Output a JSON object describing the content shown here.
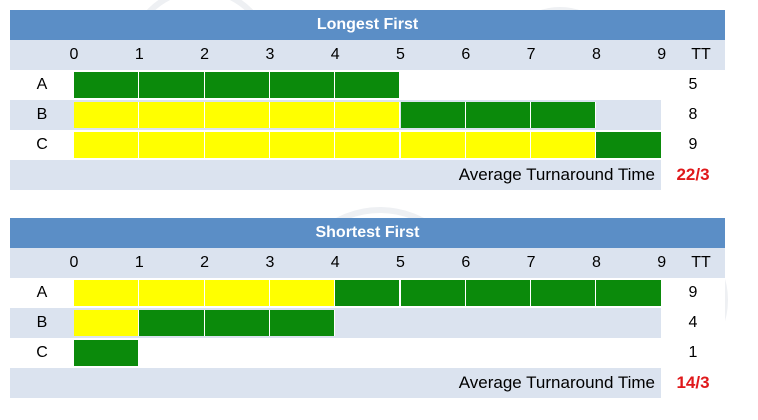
{
  "time_ticks": [
    "0",
    "1",
    "2",
    "3",
    "4",
    "5",
    "6",
    "7",
    "8",
    "9"
  ],
  "tt_header": "TT",
  "avg_label": "Average Turnaround Time",
  "colors": {
    "header": "#5b8ec6",
    "band": "#dbe3ef",
    "running": "#0b8a0b",
    "waiting": "#ffff00",
    "avg_value": "#e0191b"
  },
  "panels": [
    {
      "title": "Longest First",
      "rows": [
        {
          "label": "A",
          "segments": [
            {
              "state": "running",
              "start": 0,
              "end": 5
            }
          ],
          "tt": "5"
        },
        {
          "label": "B",
          "segments": [
            {
              "state": "waiting",
              "start": 0,
              "end": 5
            },
            {
              "state": "running",
              "start": 5,
              "end": 8
            }
          ],
          "tt": "8"
        },
        {
          "label": "C",
          "segments": [
            {
              "state": "waiting",
              "start": 0,
              "end": 8
            },
            {
              "state": "running",
              "start": 8,
              "end": 9
            }
          ],
          "tt": "9"
        }
      ],
      "avg": "22/3"
    },
    {
      "title": "Shortest First",
      "rows": [
        {
          "label": "A",
          "segments": [
            {
              "state": "waiting",
              "start": 0,
              "end": 4
            },
            {
              "state": "running",
              "start": 4,
              "end": 9
            }
          ],
          "tt": "9"
        },
        {
          "label": "B",
          "segments": [
            {
              "state": "waiting",
              "start": 0,
              "end": 1
            },
            {
              "state": "running",
              "start": 1,
              "end": 4
            }
          ],
          "tt": "4"
        },
        {
          "label": "C",
          "segments": [
            {
              "state": "running",
              "start": 0,
              "end": 1
            }
          ],
          "tt": "1"
        }
      ],
      "avg": "14/3"
    }
  ]
}
